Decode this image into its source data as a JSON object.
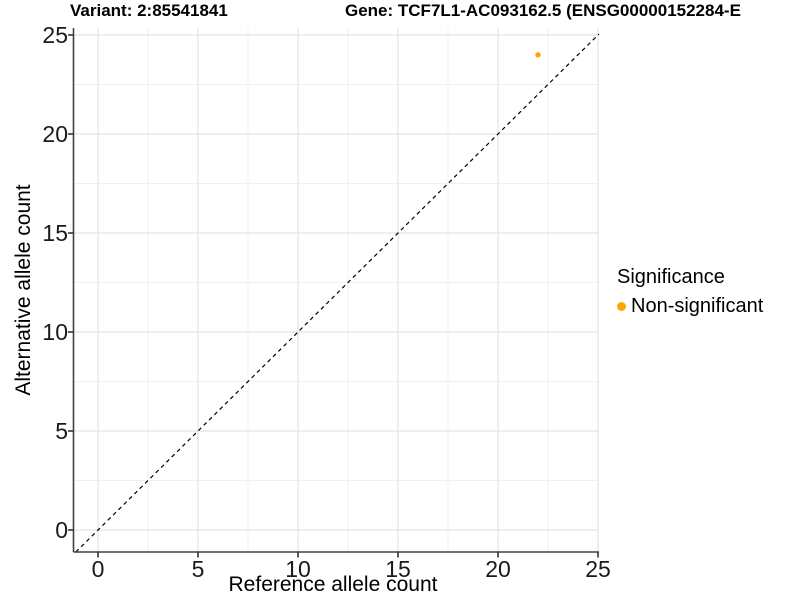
{
  "figure": {
    "title_variant": "Variant: 2:85541841",
    "title_gene": "Gene: TCF7L1-AC093162.5 (ENSG00000152284-E"
  },
  "axes": {
    "x_label": "Reference allele count",
    "y_label": "Alternative allele count"
  },
  "legend": {
    "title": "Significance",
    "entries": [
      {
        "label": "Non-significant",
        "color": "#FFA500",
        "marker": "circle-icon"
      }
    ]
  },
  "chart_data": {
    "type": "scatter",
    "title": "Variant: 2:85541841  /  Gene: TCF7L1-AC093162.5 (ENSG00000152284-E…)",
    "xlabel": "Reference allele count",
    "ylabel": "Alternative allele count",
    "xlim": [
      -1.25,
      25.05
    ],
    "ylim": [
      -1.1,
      25.1
    ],
    "x_ticks": [
      0,
      5,
      10,
      15,
      20,
      25
    ],
    "y_ticks": [
      0,
      5,
      10,
      15,
      20,
      25
    ],
    "grid": "major+minor",
    "minor_tick_step": 2.5,
    "reference_line": {
      "equation": "y = x",
      "style": "dashed",
      "color": "#000000"
    },
    "series": [
      {
        "name": "Non-significant",
        "color": "#FFA500",
        "marker": "circle",
        "points": [
          {
            "x": 22,
            "y": 24
          }
        ]
      }
    ],
    "legend_title": "Significance",
    "legend_position": "right"
  }
}
